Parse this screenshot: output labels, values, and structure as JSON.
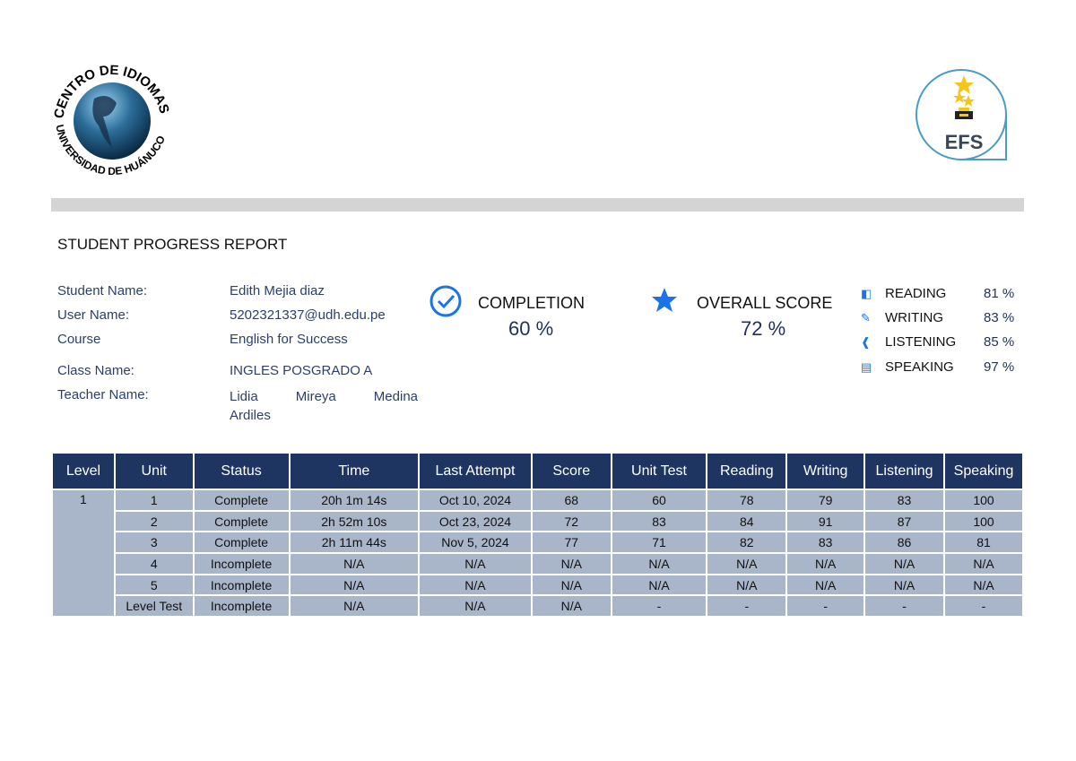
{
  "logos": {
    "left_text": "CENTRO DE IDIOMAS UNIVERSIDAD DE HUÁNUCO",
    "right_text": "EFS"
  },
  "report_title": "STUDENT PROGRESS REPORT",
  "info": [
    {
      "label": "Student Name:",
      "value": "Edith Mejia diaz"
    },
    {
      "label": "User Name:",
      "value": "5202321337@udh.edu.pe"
    },
    {
      "label": "Course",
      "value": "English for Success"
    },
    {
      "label": "Class Name:",
      "value": "INGLES POSGRADO A"
    },
    {
      "label": "Teacher Name:",
      "value": "Lidia      Mireya      Medina Ardiles"
    }
  ],
  "completion": {
    "label": "COMPLETION",
    "value": "60 %",
    "icon": "check-circle-icon"
  },
  "overall": {
    "label": "OVERALL SCORE",
    "value": "72 %",
    "icon": "star-icon"
  },
  "skills": [
    {
      "name": "READING",
      "value": "81 %",
      "icon": "book-icon"
    },
    {
      "name": "WRITING",
      "value": "83 %",
      "icon": "pencil-icon"
    },
    {
      "name": "LISTENING",
      "value": "85 %",
      "icon": "ear-icon"
    },
    {
      "name": "SPEAKING",
      "value": "97 %",
      "icon": "chat-icon"
    }
  ],
  "colors": {
    "accent": "#1a73e8",
    "header": "#1f3561",
    "cell": "#a9b5c8"
  },
  "table": {
    "headers": [
      "Level",
      "Unit",
      "Status",
      "Time",
      "Last Attempt",
      "Score",
      "Unit Test",
      "Reading",
      "Writing",
      "Listening",
      "Speaking"
    ],
    "level": "1",
    "rows": [
      [
        "1",
        "Complete",
        "20h 1m 14s",
        "Oct 10, 2024",
        "68",
        "60",
        "78",
        "79",
        "83",
        "100"
      ],
      [
        "2",
        "Complete",
        "2h 52m 10s",
        "Oct 23, 2024",
        "72",
        "83",
        "84",
        "91",
        "87",
        "100"
      ],
      [
        "3",
        "Complete",
        "2h 11m 44s",
        "Nov 5, 2024",
        "77",
        "71",
        "82",
        "83",
        "86",
        "81"
      ],
      [
        "4",
        "Incomplete",
        "N/A",
        "N/A",
        "N/A",
        "N/A",
        "N/A",
        "N/A",
        "N/A",
        "N/A"
      ],
      [
        "5",
        "Incomplete",
        "N/A",
        "N/A",
        "N/A",
        "N/A",
        "N/A",
        "N/A",
        "N/A",
        "N/A"
      ],
      [
        "Level Test",
        "Incomplete",
        "N/A",
        "N/A",
        "N/A",
        "-",
        "-",
        "-",
        "-",
        "-"
      ]
    ]
  }
}
